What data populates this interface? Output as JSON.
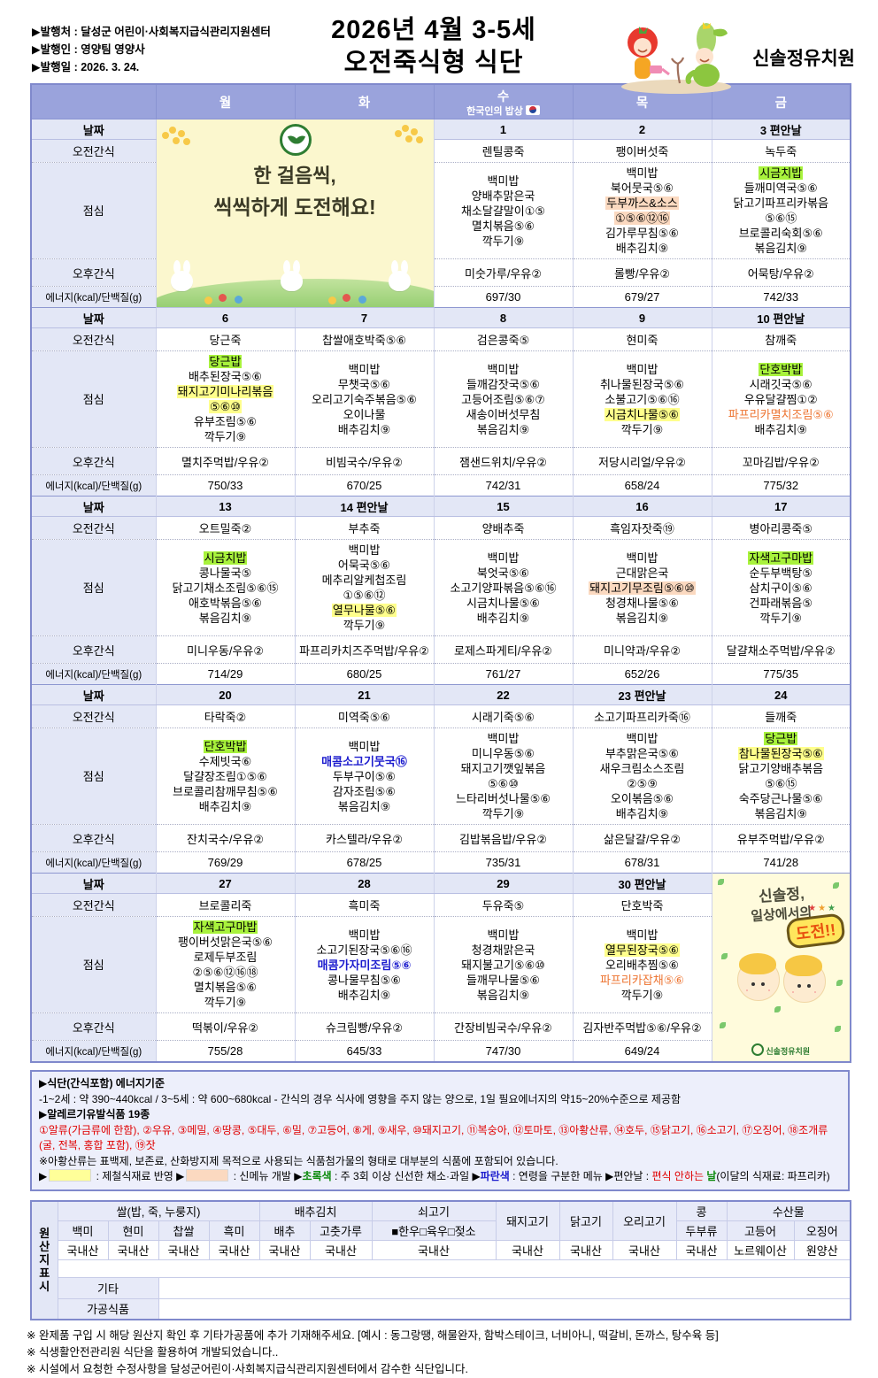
{
  "header": {
    "info_lines": [
      "▶발행처 : 달성군 어린이·사회복지급식관리지원센터",
      "▶발행인 : 영양팀 영양사",
      "▶발행일 : 2026. 3. 24."
    ],
    "title_line1": "2026년 4월 3-5세",
    "title_line2": "오전죽식형 식단",
    "org_name": "신솔정유치원"
  },
  "calendar": {
    "day_headers": [
      "월",
      "화",
      "수",
      "목",
      "금"
    ],
    "wednesday_subtitle": "한국인의 밥상",
    "row_labels": {
      "date": "날짜",
      "am": "오전간식",
      "lunch": "점심",
      "pm": "오후간식",
      "energy": "에너지(kcal)/단백질(g)"
    },
    "weeks": [
      {
        "banner": "left",
        "dates": [
          "",
          "",
          "1",
          "2",
          "3 편안날"
        ],
        "am": [
          "",
          "",
          "렌틸콩죽",
          "팽이버섯죽",
          "녹두죽"
        ],
        "lunch": [
          null,
          null,
          [
            "백미밥",
            "양배추맑은국",
            "채소달걀말이①⑤",
            "멸치볶음⑤⑥",
            "깍두기⑨"
          ],
          [
            "백미밥",
            "북어뭇국⑤⑥",
            {
              "t": "두부까스&소스",
              "s": "p"
            },
            {
              "t": "①⑤⑥⑫⑯",
              "s": "p"
            },
            "김가루무침⑤⑥",
            "배추김치⑨"
          ],
          [
            {
              "t": "시금치밥",
              "s": "g"
            },
            "들깨미역국⑤⑥",
            "닭고기파프리카볶음",
            "⑤⑥⑮",
            "브로콜리숙회⑤⑥",
            "볶음김치⑨"
          ]
        ],
        "pm": [
          "",
          "",
          "미숫가루/우유②",
          "롤빵/우유②",
          "어묵탕/우유②"
        ],
        "energy": [
          "",
          "",
          "697/30",
          "679/27",
          "742/33"
        ]
      },
      {
        "dates": [
          "6",
          "7",
          "8",
          "9",
          "10 편안날"
        ],
        "am": [
          "당근죽",
          "찹쌀애호박죽⑤⑥",
          "검은콩죽⑤",
          "현미죽",
          "참깨죽"
        ],
        "lunch": [
          [
            {
              "t": "당근밥",
              "s": "g"
            },
            "배추된장국⑤⑥",
            {
              "t": "돼지고기미나리볶음",
              "s": "y"
            },
            {
              "t": "⑤⑥⑩",
              "s": "y"
            },
            "유부조림⑤⑥",
            "깍두기⑨"
          ],
          [
            "백미밥",
            "무챗국⑤⑥",
            "오리고기숙주볶음⑤⑥",
            "오이나물",
            "배추김치⑨"
          ],
          [
            "백미밥",
            "들깨감잣국⑤⑥",
            "고등어조림⑤⑥⑦",
            "새송이버섯무침",
            "볶음김치⑨"
          ],
          [
            "백미밥",
            "취나물된장국⑤⑥",
            "소불고기⑤⑥⑯",
            {
              "t": "시금치나물⑤⑥",
              "s": "y"
            },
            "깍두기⑨"
          ],
          [
            {
              "t": "단호박밥",
              "s": "g"
            },
            "시래깃국⑤⑥",
            "우유달걀찜①②",
            {
              "t": "파프리카멸치조림⑤⑥",
              "s": "o"
            },
            "배추김치⑨"
          ]
        ],
        "pm": [
          "멸치주먹밥/우유②",
          "비빔국수/우유②",
          "잼샌드위치/우유②",
          "저당시리얼/우유②",
          "꼬마김밥/우유②"
        ],
        "energy": [
          "750/33",
          "670/25",
          "742/31",
          "658/24",
          "775/32"
        ]
      },
      {
        "dates": [
          "13",
          "14 편안날",
          "15",
          "16",
          "17"
        ],
        "am": [
          "오트밀죽②",
          "부추죽",
          "양배추죽",
          "흑임자잣죽⑲",
          "병아리콩죽⑤"
        ],
        "lunch": [
          [
            {
              "t": "시금치밥",
              "s": "g"
            },
            "콩나물국⑤",
            "닭고기채소조림⑤⑥⑮",
            "애호박볶음⑤⑥",
            "볶음김치⑨"
          ],
          [
            "백미밥",
            "어묵국⑤⑥",
            "메추리알케첩조림",
            "①⑤⑥⑫",
            {
              "t": "열무나물⑤⑥",
              "s": "y"
            },
            "깍두기⑨"
          ],
          [
            "백미밥",
            "북엇국⑤⑥",
            "소고기양파볶음⑤⑥⑯",
            "시금치나물⑤⑥",
            "배추김치⑨"
          ],
          [
            "백미밥",
            "근대맑은국",
            {
              "t": "돼지고기무조림⑤⑥⑩",
              "s": "p"
            },
            "청경채나물⑤⑥",
            "볶음김치⑨"
          ],
          [
            {
              "t": "자색고구마밥",
              "s": "g"
            },
            "순두부백탕⑤",
            "삼치구이⑤⑥",
            "건파래볶음⑤",
            "깍두기⑨"
          ]
        ],
        "pm": [
          "미니우동/우유②",
          "파프리카치즈주먹밥/우유②",
          "로제스파게티/우유②",
          "미니약과/우유②",
          "달걀채소주먹밥/우유②"
        ],
        "energy": [
          "714/29",
          "680/25",
          "761/27",
          "652/26",
          "775/35"
        ]
      },
      {
        "dates": [
          "20",
          "21",
          "22",
          "23 편안날",
          "24"
        ],
        "am": [
          "타락죽②",
          "미역죽⑤⑥",
          "시래기죽⑤⑥",
          "소고기파프리카죽⑯",
          "들깨죽"
        ],
        "lunch": [
          [
            {
              "t": "단호박밥",
              "s": "g"
            },
            "수제빗국⑥",
            "달걀장조림①⑤⑥",
            "브로콜리참깨무침⑤⑥",
            "배추김치⑨"
          ],
          [
            "백미밥",
            {
              "t": "매콤소고기뭇국⑯",
              "s": "b"
            },
            "두부구이⑤⑥",
            "감자조림⑤⑥",
            "볶음김치⑨"
          ],
          [
            "백미밥",
            "미니우동⑤⑥",
            "돼지고기깻잎볶음",
            "⑤⑥⑩",
            "느타리버섯나물⑤⑥",
            "깍두기⑨"
          ],
          [
            "백미밥",
            "부추맑은국⑤⑥",
            "새우크림소스조림",
            "②⑤⑨",
            "오이볶음⑤⑥",
            "배추김치⑨"
          ],
          [
            {
              "t": "당근밥",
              "s": "g"
            },
            {
              "t": "참나물된장국⑤⑥",
              "s": "y"
            },
            "닭고기양배추볶음",
            "⑤⑥⑮",
            "숙주당근나물⑤⑥",
            "볶음김치⑨"
          ]
        ],
        "pm": [
          "잔치국수/우유②",
          "카스텔라/우유②",
          "김밥볶음밥/우유②",
          "삶은달걀/우유②",
          "유부주먹밥/우유②"
        ],
        "energy": [
          "769/29",
          "678/25",
          "735/31",
          "678/31",
          "741/28"
        ]
      },
      {
        "banner": "right",
        "dates": [
          "27",
          "28",
          "29",
          "30 편안날",
          ""
        ],
        "am": [
          "브로콜리죽",
          "흑미죽",
          "두유죽⑤",
          "단호박죽",
          ""
        ],
        "lunch": [
          [
            {
              "t": "자색고구마밥",
              "s": "g"
            },
            "팽이버섯맑은국⑤⑥",
            "로제두부조림",
            "②⑤⑥⑫⑯⑱",
            "멸치볶음⑤⑥",
            "깍두기⑨"
          ],
          [
            "백미밥",
            "소고기된장국⑤⑥⑯",
            {
              "t": "매콤가자미조림⑤⑥",
              "s": "b"
            },
            "콩나물무침⑤⑥",
            "배추김치⑨"
          ],
          [
            "백미밥",
            "청경채맑은국",
            "돼지불고기⑤⑥⑩",
            "들깨무나물⑤⑥",
            "볶음김치⑨"
          ],
          [
            "백미밥",
            {
              "t": "열무된장국⑤⑥",
              "s": "y"
            },
            "오리배추찜⑤⑥",
            {
              "t": "파프리카잡채⑤⑥",
              "s": "o"
            },
            "깍두기⑨"
          ],
          null
        ],
        "pm": [
          "떡볶이/우유②",
          "슈크림빵/우유②",
          "간장비빔국수/우유②",
          "김자반주먹밥⑤⑥/우유②",
          ""
        ],
        "energy": [
          "755/28",
          "645/33",
          "747/30",
          "649/24",
          ""
        ]
      }
    ]
  },
  "banners": {
    "banner1": {
      "line1": "한 걸음씩,",
      "line2": "씩씩하게 도전해요!"
    },
    "banner2": {
      "line1": "신솔정,",
      "line2": "일상에서의",
      "bubble": "도전!!",
      "logo": "신솔정유치원"
    }
  },
  "notes_box": {
    "energy_title": "▶식단(간식포함) 에너지기준",
    "energy_desc": "-1~2세 : 약 390~440kcal / 3~5세 : 약 600~680kcal - 간식의 경우 식사에 영향을 주지 않는 양으로, 1일 필요에너지의 약15~20%수준으로 제공함",
    "allergy_title": "▶알레르기유발식품 19종",
    "allergy_list": "①알류(가금류에 한함), ②우유, ③메밀, ④땅콩, ⑤대두, ⑥밀, ⑦고등어, ⑧게, ⑨새우, ⑩돼지고기, ⑪복숭아, ⑫토마토, ⑬아황산류, ⑭호두, ⑮닭고기, ⑯소고기, ⑰오징어, ⑱조개류(굴, 전복, 홍합 포함), ⑲잣",
    "sulfite_note": "※아황산류는 표백제, 보존료, 산화방지제 목적으로 사용되는 식품첨가물의 형태로 대부분의 식품에 포함되어 있습니다.",
    "legend": [
      {
        "t": "▶"
      },
      {
        "swatch": "y"
      },
      {
        "t": " : 제철식재료 반영   ▶"
      },
      {
        "swatch": "p"
      },
      {
        "t": " : 신메뉴 개발   ▶"
      },
      {
        "t": "초록색",
        "s": "green"
      },
      {
        "t": " : 주 3회 이상 신선한 채소·과일   ▶"
      },
      {
        "t": "파란색",
        "s": "blue"
      },
      {
        "t": " : 연령을 구분한 메뉴   ▶편안날 : "
      },
      {
        "t": "편식 안하는 ",
        "s": "red"
      },
      {
        "t": "날",
        "s": "green"
      },
      {
        "t": "(이달의 식재료: 파프리카)"
      }
    ]
  },
  "origin_table": {
    "side_label": "원산지표시",
    "group_row": [
      {
        "t": "쌀(밥, 죽, 누룽지)",
        "colspan": 4
      },
      {
        "t": "배추김치",
        "colspan": 2
      },
      {
        "t": "쇠고기",
        "colspan": 1
      },
      {
        "t": "돼지고기",
        "colspan": 1,
        "rowspan": 2
      },
      {
        "t": "닭고기",
        "colspan": 1,
        "rowspan": 2
      },
      {
        "t": "오리고기",
        "colspan": 1,
        "rowspan": 2
      },
      {
        "t": "콩",
        "colspan": 1
      },
      {
        "t": "수산물",
        "colspan": 2
      }
    ],
    "sub_row": [
      "백미",
      "현미",
      "찹쌀",
      "흑미",
      "배추",
      "고춧가루",
      "■한우□육우□젖소",
      "두부류",
      "고등어",
      "오징어"
    ],
    "value_row": [
      "국내산",
      "국내산",
      "국내산",
      "국내산",
      "국내산",
      "국내산",
      "국내산",
      "국내산",
      "국내산",
      "국내산",
      "국내산",
      "노르웨이산",
      "원양산"
    ],
    "extra_rows": [
      {
        "label": "기타",
        "value": ""
      },
      {
        "label": "가공식품",
        "value": ""
      }
    ]
  },
  "footnotes": [
    "※ 완제품 구입 시 해당 원산지 확인 후 기타가공품에 추가 기재해주세요. [예시 : 동그랑땡, 해물완자, 함박스테이크, 너비아니, 떡갈비, 돈까스, 탕수육 등]",
    "※ 식생활안전관리원 식단을 활용하여 개발되었습니다..",
    "※ 시설에서 요청한 수정사항을 달성군어린이·사회복지급식관리지원센터에서 감수한 식단입니다."
  ]
}
